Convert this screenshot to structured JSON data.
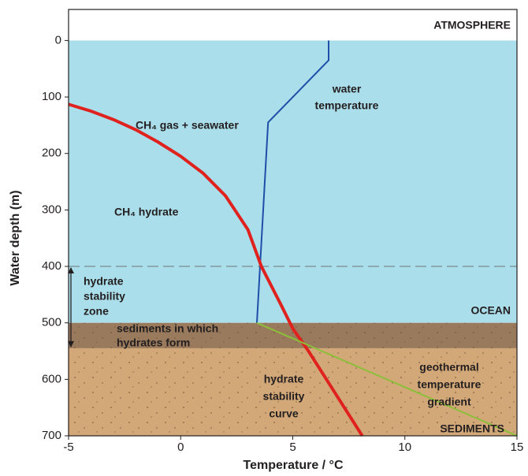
{
  "chart_data": {
    "type": "line",
    "xlabel": "Temperature / °C",
    "ylabel": "Water depth (m)",
    "xlim": [
      -5,
      15
    ],
    "xticks": [
      -5,
      0,
      5,
      10,
      15
    ],
    "ylim": [
      -55,
      700
    ],
    "y_inverted": true,
    "yticks": [
      0,
      100,
      200,
      300,
      400,
      500,
      600,
      700
    ],
    "bands": [
      {
        "from": -55,
        "to": 0,
        "color": "#ffffff"
      },
      {
        "from": 0,
        "to": 500,
        "color": "#aadeea"
      },
      {
        "from": 500,
        "to": 545,
        "color": "#9a7a5c"
      },
      {
        "from": 545,
        "to": 700,
        "color": "#d3a878"
      }
    ],
    "hlines": [
      {
        "value": 400,
        "color": "#7a8a90",
        "dashed": true
      }
    ],
    "range_arrow": [
      400,
      545
    ],
    "series": [
      {
        "color": "#1f4ea8",
        "x": [
          6.6,
          6.6,
          3.9,
          3.4
        ],
        "values": [
          0,
          35,
          145,
          500
        ]
      },
      {
        "color": "#e0221f",
        "x": [
          -5,
          -4,
          -3,
          -2,
          -1,
          0,
          1,
          2,
          3,
          3.6,
          4.5,
          5,
          5.7,
          6.5,
          7.3,
          8.1
        ],
        "values": [
          113,
          125,
          140,
          158,
          180,
          205,
          235,
          275,
          335,
          400,
          470,
          510,
          550,
          600,
          650,
          700
        ]
      },
      {
        "color": "#8bbf3a",
        "x": [
          3.4,
          15
        ],
        "values": [
          500,
          700
        ]
      }
    ],
    "annotations": [
      {
        "lines": [
          "ATMOSPHERE"
        ]
      },
      {
        "lines": [
          "OCEAN"
        ]
      },
      {
        "lines": [
          "SEDIMENTS"
        ]
      },
      {
        "lines": [
          "water",
          "temperature"
        ]
      },
      {
        "lines": [
          "CH₄ gas + seawater"
        ]
      },
      {
        "lines": [
          "CH₄ hydrate"
        ]
      },
      {
        "lines": [
          "hydrate",
          "stability",
          "zone"
        ]
      },
      {
        "lines": [
          "sediments in which",
          "hydrates form"
        ]
      },
      {
        "lines": [
          "hydrate",
          "stability",
          "curve"
        ]
      },
      {
        "lines": [
          "geothermal",
          "temperature",
          "gradient"
        ]
      }
    ]
  }
}
